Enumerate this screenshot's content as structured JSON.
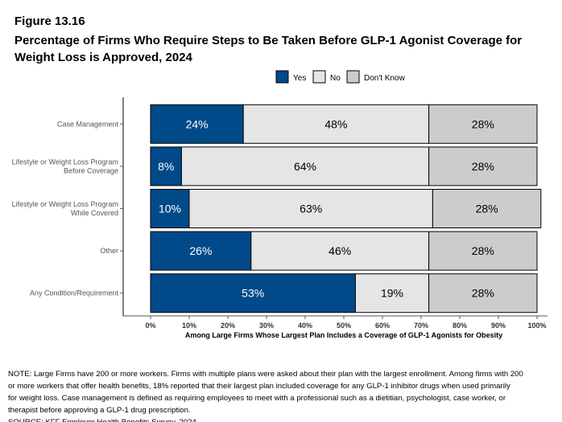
{
  "figure_label": "Figure 13.16",
  "title": "Percentage of Firms Who Require Steps to Be Taken Before GLP-1 Agonist Coverage for Weight Loss is Approved, 2024",
  "note_lines": [
    "NOTE: Large Firms have 200 or more workers.  Firms with multiple plans were asked about their plan with the largest enrollment.  Among firms with 200",
    "or more workers that offer health benefits, 18% reported that their largest plan included coverage for any GLP-1 inhibitor drugs when used primarily",
    "for weight loss. Case management is defined as requiring employees to meet with a professional such as a dietitian, psychologist, case worker, or",
    "therapist before approving a GLP-1 drug prescription.",
    "SOURCE: KFF Employer Health Benefits Survey, 2024"
  ],
  "chart_data": {
    "type": "bar",
    "orientation": "horizontal",
    "stacked": true,
    "categories": [
      [
        "Case Management"
      ],
      [
        "Lifestyle or Weight Loss Program",
        "Before Coverage"
      ],
      [
        "Lifestyle or Weight Loss Program",
        "While Covered"
      ],
      [
        "Other"
      ],
      [
        "Any Condition/Requirement"
      ]
    ],
    "series": [
      {
        "name": "Yes",
        "color": "#004a8a",
        "label_color": "#ffffff",
        "values": [
          24,
          8,
          10,
          26,
          53
        ]
      },
      {
        "name": "No",
        "color": "#e5e5e5",
        "label_color": "#000000",
        "values": [
          48,
          64,
          63,
          46,
          19
        ]
      },
      {
        "name": "Don't Know",
        "color": "#cccccc",
        "label_color": "#000000",
        "values": [
          28,
          28,
          28,
          28,
          28
        ]
      }
    ],
    "xlabel": "Among Large Firms Whose Largest Plan Includes a Coverage of GLP-1 Agonists for Obesity",
    "xlim": [
      0,
      100
    ],
    "xticks": [
      "0%",
      "10%",
      "20%",
      "30%",
      "40%",
      "50%",
      "60%",
      "70%",
      "80%",
      "90%",
      "100%"
    ],
    "legend_position": "top",
    "grid": false
  }
}
